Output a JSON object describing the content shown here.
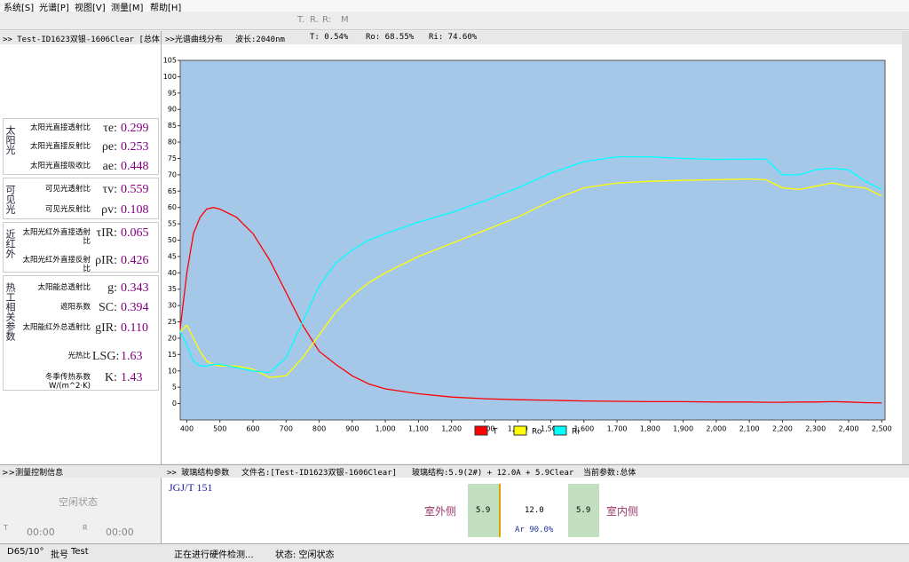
{
  "menu": [
    "系统[S]",
    "光谱[P]",
    "视图[V]",
    "测量[M]",
    "帮助[H]"
  ],
  "toolbar": {
    "labels": [
      "T.",
      "R.",
      "R:",
      "M"
    ]
  },
  "left_panel": {
    "header": ">> Test-ID1623双银-1606Clear  [总体",
    "groups": [
      {
        "label": "太阳光",
        "rows": [
          {
            "name": "太阳光直接透射比",
            "symbol": "τe:",
            "value": "0.299"
          },
          {
            "name": "太阳光直接反射比",
            "symbol": "ρe:",
            "value": "0.253"
          },
          {
            "name": "太阳光直接吸收比",
            "symbol": "ae:",
            "value": "0.448"
          }
        ]
      },
      {
        "label": "可见光",
        "rows": [
          {
            "name": "可见光透射比",
            "symbol": "τv:",
            "value": "0.559"
          },
          {
            "name": "可见光反射比",
            "symbol": "ρv:",
            "value": "0.108"
          }
        ]
      },
      {
        "label": "近红外",
        "rows": [
          {
            "name": "太阳光红外直接透射比",
            "symbol": "τIR:",
            "value": "0.065"
          },
          {
            "name": "太阳光红外直接反射比",
            "symbol": "ρIR:",
            "value": "0.426"
          }
        ]
      },
      {
        "label": "热工相关参数",
        "rows": [
          {
            "name": "太阳能总透射比",
            "symbol": "g:",
            "value": "0.343"
          },
          {
            "name": "遮阳系数",
            "symbol": "SC:",
            "value": "0.394"
          },
          {
            "name": "太阳能红外总透射比",
            "symbol": "gIR:",
            "value": "0.110"
          },
          {
            "name": "光热比",
            "symbol": "LSG:",
            "value": "1.63"
          },
          {
            "name": "冬季传热系数W/(m^2·K)",
            "symbol": "K:",
            "value": "1.43"
          }
        ]
      }
    ],
    "control_header": ">>测量控制信息",
    "state": "空闲状态",
    "t_label": "T",
    "t_time": "00:00",
    "r_label": "R",
    "r_time": "00:00"
  },
  "chart_header": {
    "title": ">>光谱曲线分布",
    "wavelength": "波长:2040nm",
    "t": "T: 0.54%",
    "ro": "Ro: 68.55%",
    "ri": "Ri: 74.60%"
  },
  "chart_data": {
    "type": "line",
    "grid": false,
    "legend": "bottom",
    "x": [
      380,
      400,
      420,
      440,
      460,
      480,
      500,
      550,
      600,
      650,
      700,
      750,
      800,
      850,
      900,
      950,
      1000,
      1100,
      1200,
      1300,
      1400,
      1500,
      1600,
      1700,
      1800,
      1900,
      2000,
      2100,
      2150,
      2200,
      2250,
      2300,
      2350,
      2400,
      2450,
      2500
    ],
    "series": [
      {
        "name": "T",
        "color": "#ff0000",
        "values": [
          23,
          40,
          52,
          57,
          59.5,
          60,
          59.5,
          57,
          52,
          44,
          34,
          24,
          16,
          12,
          8.5,
          6,
          4.5,
          3,
          2,
          1.5,
          1.2,
          1,
          0.8,
          0.7,
          0.6,
          0.6,
          0.5,
          0.5,
          0.4,
          0.4,
          0.5,
          0.5,
          0.6,
          0.5,
          0.3,
          0.2
        ]
      },
      {
        "name": "Ro",
        "color": "#ffff00",
        "values": [
          22,
          24,
          20,
          16,
          13,
          12,
          11.5,
          11.5,
          10.5,
          8,
          8.5,
          14,
          21,
          28,
          33,
          37,
          40,
          45,
          49,
          53,
          57,
          62,
          66,
          67.5,
          68,
          68.3,
          68.5,
          68.7,
          68.5,
          66,
          65.5,
          66.5,
          67.5,
          66.5,
          66,
          63.5
        ]
      },
      {
        "name": "Ri",
        "color": "#00ffff",
        "values": [
          22,
          18,
          13,
          11.5,
          11.5,
          12,
          12,
          11,
          10,
          9.5,
          14,
          25,
          36,
          43,
          47,
          50,
          52,
          55.5,
          58.5,
          62,
          66,
          70.5,
          74,
          75.5,
          75.5,
          75,
          74.7,
          74.8,
          74.8,
          70,
          70,
          71.5,
          72,
          71.5,
          68,
          65.5
        ]
      }
    ],
    "xlim": [
      380,
      2510
    ],
    "ylim": [
      -5,
      105
    ],
    "xticks": [
      400,
      500,
      600,
      700,
      800,
      900,
      {
        "value": 1000,
        "label": "1,000"
      },
      {
        "value": 1100,
        "label": "1,100"
      },
      {
        "value": 1200,
        "label": "1,200"
      },
      {
        "value": 1300,
        "label": "1,300"
      },
      {
        "value": 1400,
        "label": "1,400"
      },
      {
        "value": 1500,
        "label": "1,500"
      },
      {
        "value": 1600,
        "label": "1,600"
      },
      {
        "value": 1700,
        "label": "1,700"
      },
      {
        "value": 1800,
        "label": "1,800"
      },
      {
        "value": 1900,
        "label": "1,900"
      },
      {
        "value": 2000,
        "label": "2,000"
      },
      {
        "value": 2100,
        "label": "2,100"
      },
      {
        "value": 2200,
        "label": "2,200"
      },
      {
        "value": 2300,
        "label": "2,300"
      },
      {
        "value": 2400,
        "label": "2,400"
      },
      {
        "value": 2500,
        "label": "2,500"
      }
    ],
    "yticks": [
      0,
      5,
      10,
      15,
      20,
      25,
      30,
      35,
      40,
      45,
      50,
      55,
      60,
      65,
      70,
      75,
      80,
      85,
      90,
      95,
      100,
      105
    ]
  },
  "glass": {
    "header": ">> 玻璃结构参数",
    "file": "文件名:[Test-ID1623双银-1606Clear]",
    "structure": "玻璃结构:5.9(2#) + 12.0A + 5.9Clear",
    "current": "当前参数:总体",
    "standard": "JGJ/T 151",
    "outside": "室外侧",
    "outer_glass": "5.9",
    "gap": "12.0",
    "gas": "Ar 90.0%",
    "inner_glass": "5.9",
    "inside": "室内侧"
  },
  "status_bar": {
    "illuminant": "D65/10°",
    "batch_label": "批号",
    "batch": "Test",
    "hardware": "正在进行硬件检测...",
    "state": "状态: 空闲状态"
  }
}
